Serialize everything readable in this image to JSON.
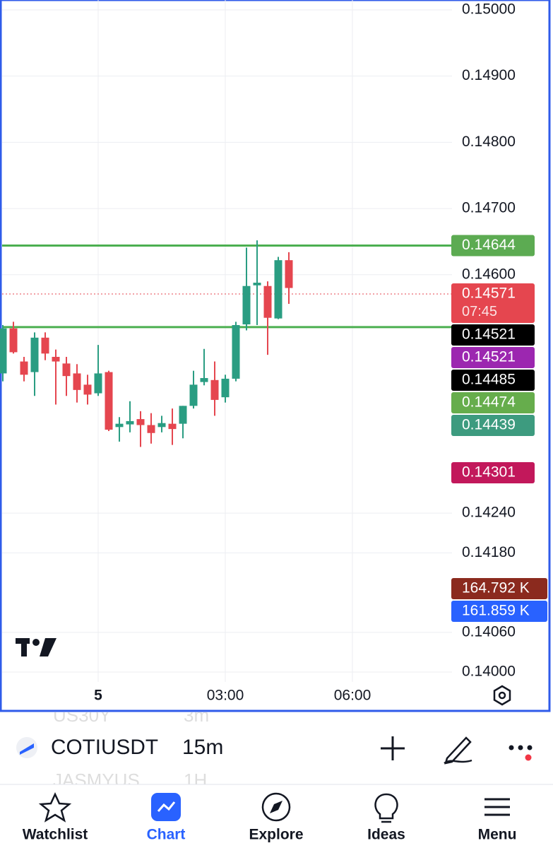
{
  "chart_data": {
    "type": "candlestick",
    "x": [
      -2.25,
      -2,
      -1.75,
      -1.5,
      -1.25,
      -1,
      -0.75,
      -0.5,
      -0.25,
      0,
      0.25,
      0.5,
      0.75,
      1,
      1.25,
      1.5,
      1.75,
      2,
      2.25,
      2.5,
      2.75,
      3,
      3.25,
      3.5,
      3.75,
      4,
      4.25,
      4.5
    ],
    "open": [
      0.14451,
      0.14519,
      0.14469,
      0.14453,
      0.14505,
      0.14476,
      0.14466,
      0.14451,
      0.14434,
      0.14421,
      0.14453,
      0.1437,
      0.14374,
      0.14382,
      0.14373,
      0.1437,
      0.14375,
      0.14375,
      0.14402,
      0.14438,
      0.14441,
      0.14415,
      0.14443,
      0.14525,
      0.14584,
      0.14583,
      0.14534,
      0.14622
    ],
    "high": [
      0.14524,
      0.14529,
      0.14476,
      0.14513,
      0.14513,
      0.14487,
      0.14476,
      0.14465,
      0.14449,
      0.14494,
      0.14455,
      0.14385,
      0.14409,
      0.14394,
      0.14391,
      0.14387,
      0.14398,
      0.14402,
      0.14455,
      0.14488,
      0.14469,
      0.14449,
      0.14529,
      0.14641,
      0.14652,
      0.1459,
      0.14627,
      0.14634
    ],
    "low": [
      0.14439,
      0.14481,
      0.14439,
      0.14417,
      0.14471,
      0.14404,
      0.14417,
      0.14407,
      0.14404,
      0.14417,
      0.14364,
      0.14348,
      0.14362,
      0.1434,
      0.14345,
      0.14362,
      0.14343,
      0.14353,
      0.14398,
      0.14433,
      0.14387,
      0.14407,
      0.14439,
      0.14516,
      0.14524,
      0.14479,
      0.14533,
      0.14556
    ],
    "close": [
      0.14519,
      0.14483,
      0.14449,
      0.14505,
      0.14481,
      0.14469,
      0.14447,
      0.14426,
      0.14419,
      0.14451,
      0.14366,
      0.14375,
      0.14379,
      0.14373,
      0.14361,
      0.14376,
      0.14367,
      0.14402,
      0.14434,
      0.14444,
      0.14411,
      0.14443,
      0.14524,
      0.14583,
      0.14588,
      0.14535,
      0.14622,
      0.1458
    ],
    "up_color": "#2a9d82",
    "down_color": "#e5464f",
    "xlim": [
      -2.3167,
      8.35
    ],
    "xticks": [
      {
        "value": 0,
        "label": "5"
      },
      {
        "value": 3,
        "label": "03:00"
      },
      {
        "value": 6,
        "label": "06:00"
      }
    ],
    "ylim": [
      0.139851,
      0.150149
    ],
    "yticks": [
      {
        "value": 0.15,
        "label": "0.15000"
      },
      {
        "value": 0.149,
        "label": "0.14900"
      },
      {
        "value": 0.148,
        "label": "0.14800"
      },
      {
        "value": 0.147,
        "label": "0.14700"
      },
      {
        "value": 0.146,
        "label": "0.14600"
      },
      {
        "value": 0.1424,
        "label": "0.14240"
      },
      {
        "value": 0.1418,
        "label": "0.14180"
      },
      {
        "value": 0.1406,
        "label": "0.14060"
      },
      {
        "value": 0.14,
        "label": "0.14000"
      }
    ],
    "grid": true,
    "lines": [
      {
        "value": 0.14644,
        "color": "#4caf50"
      },
      {
        "value": 0.14521,
        "color": "#4caf50"
      }
    ],
    "price_labels": [
      {
        "value": 0.14644,
        "color": "#5cab52"
      },
      {
        "value": 0.14571,
        "color": "#e5464f",
        "countdown": "07:45",
        "dotted": true
      },
      {
        "value": 0.14521,
        "color": "#000000"
      },
      {
        "value": 0.14521,
        "color": "#9c27b0"
      },
      {
        "value": 0.14485,
        "color": "#000000"
      },
      {
        "value": 0.14474,
        "color": "#66ad4c"
      },
      {
        "value": 0.14439,
        "color": "#3d9b7f"
      },
      {
        "value": 0.14301,
        "color": "#c2185b"
      }
    ],
    "volume_labels": [
      {
        "label": "164.792 K",
        "color": "#8b2a1e"
      },
      {
        "label": "161.859 K",
        "color": "#2962ff"
      }
    ]
  },
  "toolbar": {
    "symbol": "COTIUSDT",
    "interval": "15m",
    "ghost": [
      "US30Y",
      "3m",
      "JASMYUS",
      "1H"
    ]
  },
  "nav": [
    "Watchlist",
    "Chart",
    "Explore",
    "Ideas",
    "Menu"
  ]
}
